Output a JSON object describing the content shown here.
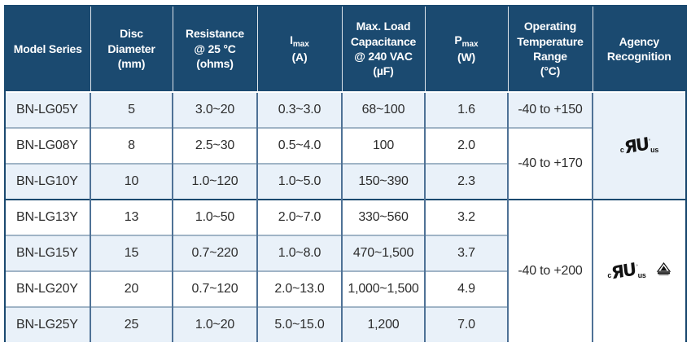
{
  "table": {
    "headers": [
      {
        "id": "model",
        "lines": [
          "Model Series"
        ]
      },
      {
        "id": "disc",
        "lines": [
          "Disc",
          "Diameter",
          "(mm)"
        ]
      },
      {
        "id": "resistance",
        "lines": [
          "Resistance",
          "@ 25 °C",
          "(ohms)"
        ]
      },
      {
        "id": "imax",
        "lines": [
          "I{max}",
          "(A)"
        ]
      },
      {
        "id": "cap",
        "lines": [
          "Max. Load",
          "Capacitance",
          "@ 240 VAC",
          "(µF)"
        ]
      },
      {
        "id": "pmax",
        "lines": [
          "P{max}",
          "(W)"
        ]
      },
      {
        "id": "temp",
        "lines": [
          "Operating",
          "Temperature",
          "Range",
          "(°C)"
        ]
      },
      {
        "id": "agency",
        "lines": [
          "Agency",
          "Recognition"
        ]
      }
    ],
    "rows": [
      {
        "model": "BN-LG05Y",
        "disc": "5",
        "resistance": "3.0~20",
        "imax": "0.3~3.0",
        "cap": "68~100",
        "pmax": "1.6"
      },
      {
        "model": "BN-LG08Y",
        "disc": "8",
        "resistance": "2.5~30",
        "imax": "0.5~4.0",
        "cap": "100",
        "pmax": "2.0"
      },
      {
        "model": "BN-LG10Y",
        "disc": "10",
        "resistance": "1.0~120",
        "imax": "1.0~5.0",
        "cap": "150~390",
        "pmax": "2.3"
      },
      {
        "model": "BN-LG13Y",
        "disc": "13",
        "resistance": "1.0~50",
        "imax": "2.0~7.0",
        "cap": "330~560",
        "pmax": "3.2"
      },
      {
        "model": "BN-LG15Y",
        "disc": "15",
        "resistance": "0.7~220",
        "imax": "1.0~8.0",
        "cap": "470~1,500",
        "pmax": "3.7"
      },
      {
        "model": "BN-LG20Y",
        "disc": "20",
        "resistance": "0.7~120",
        "imax": "2.0~13.0",
        "cap": "1,000~1,500",
        "pmax": "4.9"
      },
      {
        "model": "BN-LG25Y",
        "disc": "25",
        "resistance": "1.0~20",
        "imax": "5.0~15.0",
        "cap": "1,200",
        "pmax": "7.0"
      }
    ],
    "temp_groups": [
      {
        "start": 0,
        "span": 1,
        "label": "-40 to +150"
      },
      {
        "start": 1,
        "span": 2,
        "label": "-40 to +170"
      },
      {
        "start": 3,
        "span": 4,
        "label": "-40 to +200"
      }
    ],
    "agency_groups": [
      {
        "start": 0,
        "span": 3,
        "logos": [
          "ul-recognized"
        ]
      },
      {
        "start": 3,
        "span": 4,
        "logos": [
          "ul-recognized",
          "triangle-cert"
        ]
      }
    ],
    "group_start_rows": [
      3
    ]
  },
  "icons": {
    "ul_mark": {
      "prefix": "c",
      "core": "ЯU",
      "reg": "°",
      "suffix": "us"
    }
  },
  "colors": {
    "header_bg": "#1b4a70",
    "row_alt_bg": "#e9f1f9",
    "row_bg": "#ffffff",
    "grid_vertical": "#4f7296",
    "grid_horizontal": "#a0b4c6",
    "frame": "#1b4a70",
    "header_text": "#ffffff",
    "body_text": "#2d2d2d"
  }
}
